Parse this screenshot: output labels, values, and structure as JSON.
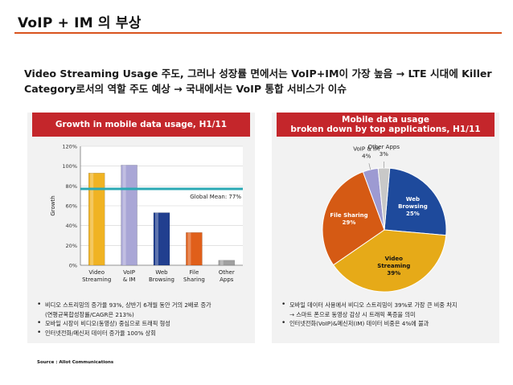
{
  "slide": {
    "title": "VoIP + IM 의 부상",
    "headline": "Video Streaming Usage 주도, 그러나 성장률 면에서는 VoIP+IM이 가장 높음 → LTE 시대에 Killer Category로서의 역할 주도 예상 → 국내에서는 VoIP 통합 서비스가 이슈",
    "source": "Source :  Allot Communications"
  },
  "colors": {
    "accent": "#d9531e",
    "header": "#c4262b",
    "mean_line": "#2aa9b4"
  },
  "left_panel": {
    "header": "Growth in mobile data usage, H1/11",
    "bullets": [
      {
        "text": "비디오 스트리밍의 증가율 93%, 상반기 6개월 동안 거의 2배로 증가",
        "sub": "(연평균복합성장률/CAGR은 213%)"
      },
      {
        "text": "모바일 시장이 비디오(동영상) 중심으로 트래픽 형성",
        "sub": ""
      },
      {
        "text": "인터넷전화/메신저 데이터 증가율 100% 상회",
        "sub": ""
      }
    ]
  },
  "right_panel": {
    "header_line1": "Mobile data usage",
    "header_line2": "broken down by top applications, H1/11",
    "bullets": [
      {
        "text": "모바일 데이터 사용에서 비디오 스트리밍이 39%로 가장 큰 비중 차지",
        "sub": "→ 스마트 폰으로 동영상 감상 시 트래픽 폭증을 의미"
      },
      {
        "text": "인터넷전화(VoIP)&메신저(IM) 데이터 비중은 4%에 불과",
        "sub": ""
      }
    ]
  },
  "chart_data": [
    {
      "type": "bar",
      "title": "Growth in mobile data usage, H1/11",
      "ylabel": "Growth",
      "ylim": [
        0,
        120
      ],
      "yticks": [
        "0%",
        "20%",
        "40%",
        "60%",
        "80%",
        "100%",
        "120%"
      ],
      "categories": [
        {
          "line1": "Video",
          "line2": "Streaming"
        },
        {
          "line1": "VoIP",
          "line2": "& IM"
        },
        {
          "line1": "Web",
          "line2": "Browsing"
        },
        {
          "line1": "File",
          "line2": "Sharing"
        },
        {
          "line1": "Other",
          "line2": "Apps"
        }
      ],
      "values": [
        93,
        101,
        53,
        33,
        5
      ],
      "colors": [
        "#f0b323",
        "#a9a6d6",
        "#213f8f",
        "#e05f1a",
        "#a0a0a0"
      ],
      "reference_line": {
        "value": 77,
        "label": "Global Mean: 77%"
      },
      "grid": true
    },
    {
      "type": "pie",
      "title": "Mobile data usage broken down by top applications, H1/11",
      "slices": [
        {
          "label_line1": "Web",
          "label_line2": "Browsing",
          "pct_label": "25%",
          "value": 25,
          "color": "#1e4a9c"
        },
        {
          "label_line1": "Video",
          "label_line2": "Streaming",
          "pct_label": "39%",
          "value": 39,
          "color": "#e6aa18"
        },
        {
          "label_line1": "File Sharing",
          "label_line2": "",
          "pct_label": "29%",
          "value": 29,
          "color": "#d55a14"
        },
        {
          "label_line1": "VoIP & IM",
          "label_line2": "",
          "pct_label": "4%",
          "value": 4,
          "color": "#9d9ad2"
        },
        {
          "label_line1": "Other Apps",
          "label_line2": "",
          "pct_label": "3%",
          "value": 3,
          "color": "#c8c8c8"
        }
      ]
    }
  ]
}
